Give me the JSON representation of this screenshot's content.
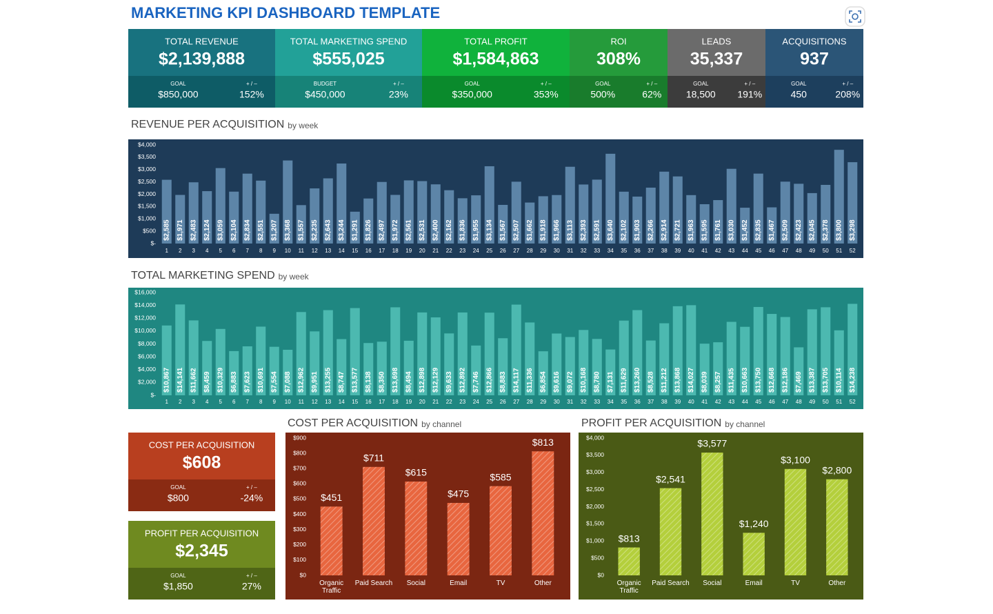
{
  "header": {
    "title": "MARKETING KPI DASHBOARD TEMPLATE"
  },
  "kpis": [
    {
      "label": "TOTAL REVENUE",
      "value": "$2,139,888",
      "target_label": "GOAL",
      "target": "$850,000",
      "delta_label": "+ / –",
      "delta": "152%"
    },
    {
      "label": "TOTAL MARKETING SPEND",
      "value": "$555,025",
      "target_label": "BUDGET",
      "target": "$450,000",
      "delta_label": "+ / –",
      "delta": "23%"
    },
    {
      "label": "TOTAL PROFIT",
      "value": "$1,584,863",
      "target_label": "GOAL",
      "target": "$350,000",
      "delta_label": "+ / –",
      "delta": "353%"
    },
    {
      "label": "ROI",
      "value": "308%",
      "target_label": "GOAL",
      "target": "500%",
      "delta_label": "+ / –",
      "delta": "62%"
    },
    {
      "label": "LEADS",
      "value": "35,337",
      "target_label": "GOAL",
      "target": "18,500",
      "delta_label": "+ / –",
      "delta": "191%"
    },
    {
      "label": "ACQUISITIONS",
      "value": "937",
      "target_label": "GOAL",
      "target": "450",
      "delta_label": "+ / –",
      "delta": "208%"
    }
  ],
  "side_kpis": [
    {
      "label": "COST PER ACQUISITION",
      "value": "$608",
      "target_label": "GOAL",
      "target": "$800",
      "delta_label": "+ / –",
      "delta": "-24%"
    },
    {
      "label": "PROFIT PER ACQUISITION",
      "value": "$2,345",
      "target_label": "GOAL",
      "target": "$1,850",
      "delta_label": "+ / –",
      "delta": "27%"
    }
  ],
  "chart_data": [
    {
      "type": "bar",
      "title": "REVENUE PER ACQUISITION",
      "subtitle": "by week",
      "color": "#5d85a8",
      "grid": false,
      "categories": [
        "1",
        "2",
        "3",
        "4",
        "5",
        "6",
        "7",
        "8",
        "9",
        "10",
        "11",
        "12",
        "13",
        "14",
        "15",
        "16",
        "17",
        "18",
        "19",
        "20",
        "21",
        "22",
        "23",
        "24",
        "25",
        "26",
        "27",
        "28",
        "29",
        "30",
        "31",
        "32",
        "33",
        "34",
        "35",
        "36",
        "37",
        "38",
        "39",
        "40",
        "41",
        "42",
        "43",
        "44",
        "45",
        "46",
        "47",
        "48",
        "49",
        "50",
        "51",
        "52"
      ],
      "values": [
        2585,
        1971,
        2483,
        2124,
        3059,
        2104,
        2834,
        2551,
        1207,
        3368,
        1557,
        2235,
        2643,
        3244,
        1291,
        1826,
        2497,
        1972,
        2561,
        2531,
        2400,
        2162,
        1836,
        1955,
        3134,
        1567,
        2507,
        1662,
        1918,
        1966,
        3113,
        2393,
        2591,
        3640,
        2102,
        1903,
        2266,
        2914,
        2721,
        1963,
        1595,
        1761,
        3030,
        1452,
        2835,
        1467,
        2509,
        2423,
        2045,
        2378,
        3800,
        3298
      ],
      "value_labels": [
        "$2,585",
        "$1,971",
        "$2,483",
        "$2,124",
        "$3,059",
        "$2,104",
        "$2,834",
        "$2,551",
        "$1,207",
        "$3,368",
        "$1,557",
        "$2,235",
        "$2,643",
        "$3,244",
        "$1,291",
        "$1,826",
        "$2,497",
        "$1,972",
        "$2,561",
        "$2,531",
        "$2,400",
        "$2,162",
        "$1,836",
        "$1,955",
        "$3,134",
        "$1,567",
        "$2,507",
        "$1,662",
        "$1,918",
        "$1,966",
        "$3,113",
        "$2,393",
        "$2,591",
        "$3,640",
        "$2,102",
        "$1,903",
        "$2,266",
        "$2,914",
        "$2,721",
        "$1,963",
        "$1,595",
        "$1,761",
        "$3,030",
        "$1,452",
        "$2,835",
        "$1,467",
        "$2,509",
        "$2,423",
        "$2,045",
        "$2,378",
        "$3,800",
        "$3,298"
      ],
      "ylim": [
        0,
        4000
      ],
      "yticks": [
        {
          "value": 0,
          "label": "$-"
        },
        {
          "value": 500,
          "label": "$500"
        },
        {
          "value": 1000,
          "label": "$1,000"
        },
        {
          "value": 1500,
          "label": "$1,500"
        },
        {
          "value": 2000,
          "label": "$2,000"
        },
        {
          "value": 2500,
          "label": "$2,500"
        },
        {
          "value": 3000,
          "label": "$3,000"
        },
        {
          "value": 3500,
          "label": "$3,500"
        },
        {
          "value": 4000,
          "label": "$4,000"
        }
      ]
    },
    {
      "type": "bar",
      "title": "TOTAL MARKETING SPEND",
      "subtitle": "by week",
      "color": "#4cb9b0",
      "grid": false,
      "categories": [
        "1",
        "2",
        "3",
        "4",
        "5",
        "6",
        "7",
        "8",
        "9",
        "10",
        "11",
        "12",
        "13",
        "14",
        "15",
        "16",
        "17",
        "18",
        "19",
        "20",
        "21",
        "22",
        "23",
        "24",
        "25",
        "26",
        "27",
        "28",
        "29",
        "30",
        "31",
        "32",
        "33",
        "34",
        "35",
        "36",
        "37",
        "38",
        "39",
        "40",
        "41",
        "42",
        "43",
        "44",
        "45",
        "46",
        "47",
        "48",
        "49",
        "50",
        "51",
        "52"
      ],
      "values": [
        10867,
        14141,
        11662,
        8459,
        10329,
        6883,
        7623,
        10691,
        7554,
        7088,
        12962,
        9951,
        13255,
        8747,
        13577,
        8138,
        8350,
        13698,
        8494,
        12898,
        12129,
        9633,
        12892,
        7746,
        12866,
        8883,
        14117,
        11336,
        6854,
        9616,
        9072,
        10168,
        8780,
        7131,
        11629,
        13260,
        8528,
        11212,
        13868,
        14027,
        8039,
        8257,
        11435,
        10663,
        13750,
        12668,
        12186,
        7469,
        13387,
        13705,
        10114,
        14238
      ],
      "value_labels": [
        "$10,867",
        "$14,141",
        "$11,662",
        "$8,459",
        "$10,329",
        "$6,883",
        "$7,623",
        "$10,691",
        "$7,554",
        "$7,088",
        "$12,962",
        "$9,951",
        "$13,255",
        "$8,747",
        "$13,577",
        "$8,138",
        "$8,350",
        "$13,698",
        "$8,494",
        "$12,898",
        "$12,129",
        "$9,633",
        "$12,892",
        "$7,746",
        "$12,866",
        "$8,883",
        "$14,117",
        "$11,336",
        "$6,854",
        "$9,616",
        "$9,072",
        "$10,168",
        "$8,780",
        "$7,131",
        "$11,629",
        "$13,260",
        "$8,528",
        "$11,212",
        "$13,868",
        "$14,027",
        "$8,039",
        "$8,257",
        "$11,435",
        "$10,663",
        "$13,750",
        "$12,668",
        "$12,186",
        "$7,469",
        "$13,387",
        "$13,705",
        "$10,114",
        "$14,238"
      ],
      "ylim": [
        0,
        16000
      ],
      "yticks": [
        {
          "value": 0,
          "label": "$-"
        },
        {
          "value": 2000,
          "label": "$2,000"
        },
        {
          "value": 4000,
          "label": "$4,000"
        },
        {
          "value": 6000,
          "label": "$6,000"
        },
        {
          "value": 8000,
          "label": "$8,000"
        },
        {
          "value": 10000,
          "label": "$10,000"
        },
        {
          "value": 12000,
          "label": "$12,000"
        },
        {
          "value": 14000,
          "label": "$14,000"
        },
        {
          "value": 16000,
          "label": "$16,000"
        }
      ]
    },
    {
      "type": "bar",
      "title": "COST PER ACQUISITION",
      "subtitle": "by channel",
      "color": "#e8663f",
      "grid": false,
      "categories": [
        "Organic Traffic",
        "Paid Search",
        "Social",
        "Email",
        "TV",
        "Other"
      ],
      "values": [
        451,
        711,
        615,
        475,
        585,
        813
      ],
      "value_labels": [
        "$451",
        "$711",
        "$615",
        "$475",
        "$585",
        "$813"
      ],
      "ylim": [
        0,
        900
      ],
      "yticks": [
        {
          "value": 0,
          "label": "$0"
        },
        {
          "value": 100,
          "label": "$100"
        },
        {
          "value": 200,
          "label": "$200"
        },
        {
          "value": 300,
          "label": "$300"
        },
        {
          "value": 400,
          "label": "$400"
        },
        {
          "value": 500,
          "label": "$500"
        },
        {
          "value": 600,
          "label": "$600"
        },
        {
          "value": 700,
          "label": "$700"
        },
        {
          "value": 800,
          "label": "$800"
        },
        {
          "value": 900,
          "label": "$900"
        }
      ]
    },
    {
      "type": "bar",
      "title": "PROFIT PER ACQUISITION",
      "subtitle": "by channel",
      "color": "#b4cf3c",
      "grid": false,
      "categories": [
        "Organic Traffic",
        "Paid Search",
        "Social",
        "Email",
        "TV",
        "Other"
      ],
      "values": [
        813,
        2541,
        3577,
        1240,
        3100,
        2800
      ],
      "value_labels": [
        "$813",
        "$2,541",
        "$3,577",
        "$1,240",
        "$3,100",
        "$2,800"
      ],
      "ylim": [
        0,
        4000
      ],
      "yticks": [
        {
          "value": 0,
          "label": "$0"
        },
        {
          "value": 500,
          "label": "$500"
        },
        {
          "value": 1000,
          "label": "$1,000"
        },
        {
          "value": 1500,
          "label": "$1,500"
        },
        {
          "value": 2000,
          "label": "$2,000"
        },
        {
          "value": 2500,
          "label": "$2,500"
        },
        {
          "value": 3000,
          "label": "$3,000"
        },
        {
          "value": 3500,
          "label": "$3,500"
        },
        {
          "value": 4000,
          "label": "$4,000"
        }
      ]
    }
  ]
}
